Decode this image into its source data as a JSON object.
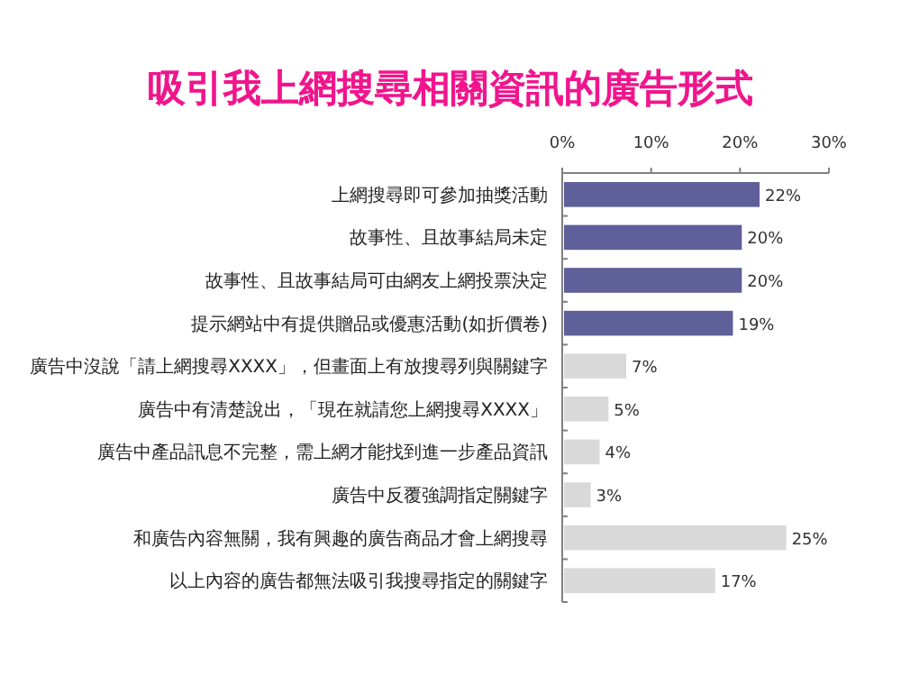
{
  "chart_data": {
    "type": "bar",
    "orientation": "horizontal",
    "title": "吸引我上網搜尋相關資訊的廣告形式",
    "categories": [
      "上網搜尋即可參加抽獎活動",
      "故事性、且故事結局未定",
      "故事性、且故事結局可由網友上網投票決定",
      "提示網站中有提供贈品或優惠活動(如折價卷)",
      "廣告中沒說「請上網搜尋XXXX」，但畫面上有放搜尋列與關鍵字",
      "廣告中有清楚說出，「現在就請您上網搜尋XXXX」",
      "廣告中產品訊息不完整，需上網才能找到進一步產品資訊",
      "廣告中反覆強調指定關鍵字",
      "和廣告內容無關，我有興趣的廣告商品才會上網搜尋",
      "以上內容的廣告都無法吸引我搜尋指定的關鍵字"
    ],
    "values": [
      22,
      20,
      20,
      19,
      7,
      5,
      4,
      3,
      25,
      17
    ],
    "colors": [
      "#5f5f99",
      "#5f5f99",
      "#5f5f99",
      "#5f5f99",
      "#d9d9d9",
      "#d9d9d9",
      "#d9d9d9",
      "#d9d9d9",
      "#d9d9d9",
      "#d9d9d9"
    ],
    "value_labels": [
      "22%",
      "20%",
      "20%",
      "19%",
      "7%",
      "5%",
      "4%",
      "3%",
      "25%",
      "17%"
    ],
    "xlim": [
      0,
      30
    ],
    "xticks": [
      {
        "value": 0,
        "label": "0%"
      },
      {
        "value": 10,
        "label": "10%"
      },
      {
        "value": 20,
        "label": "20%"
      },
      {
        "value": 30,
        "label": "30%"
      }
    ]
  }
}
